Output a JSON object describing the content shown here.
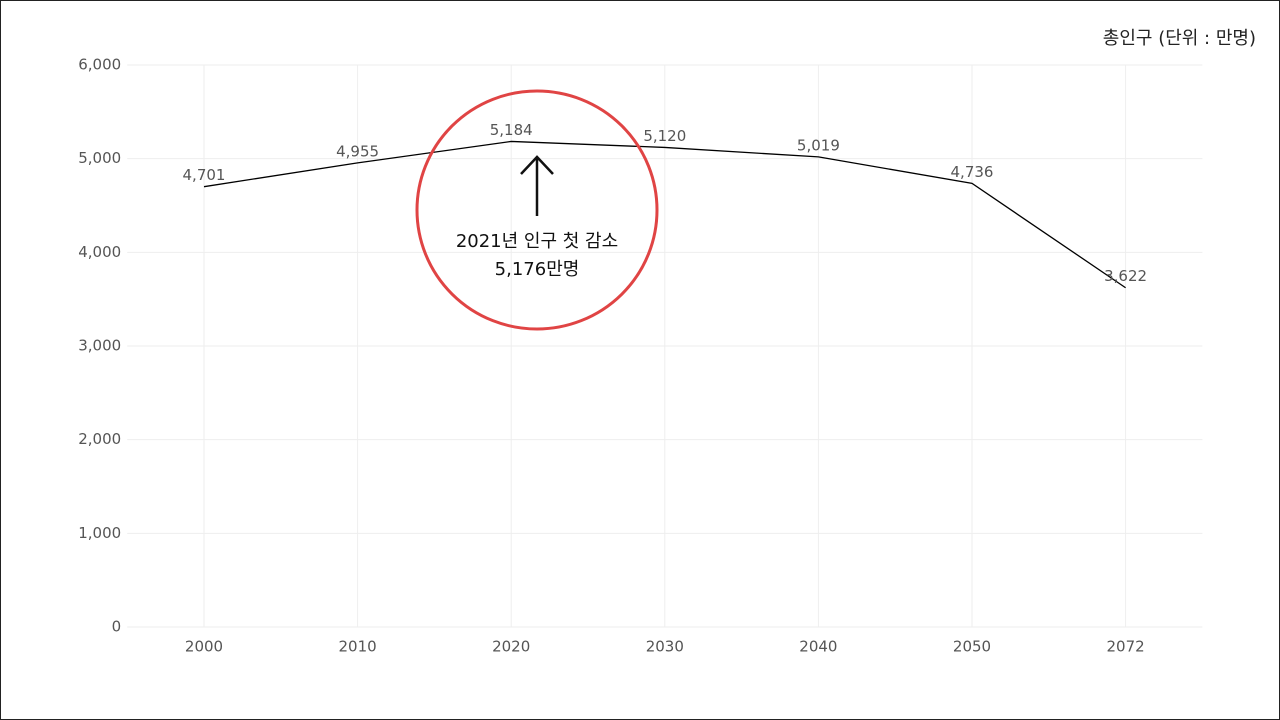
{
  "chart_data": {
    "type": "line",
    "unit_label": "총인구 (단위 : 만명)",
    "categories": [
      "2000",
      "2010",
      "2020",
      "2030",
      "2040",
      "2050",
      "2072"
    ],
    "values": [
      4701,
      4955,
      5184,
      5120,
      5019,
      4736,
      3622
    ],
    "value_labels": [
      "4,701",
      "4,955",
      "5,184",
      "5,120",
      "5,019",
      "4,736",
      "3,622"
    ],
    "color": "#000000",
    "ylim": [
      0,
      6000
    ],
    "yticks": [
      0,
      {
        "value": 1000,
        "label": "1,000"
      },
      {
        "value": 2000,
        "label": "2,000"
      },
      {
        "value": 3000,
        "label": "3,000"
      },
      {
        "value": 4000,
        "label": "4,000"
      },
      {
        "value": 5000,
        "label": "5,000"
      },
      {
        "value": 6000,
        "label": "6,000"
      }
    ],
    "grid": true,
    "annotation": {
      "lines": [
        "2021년 인구 첫 감소",
        "5,176만명"
      ],
      "color": "#e04444"
    }
  }
}
